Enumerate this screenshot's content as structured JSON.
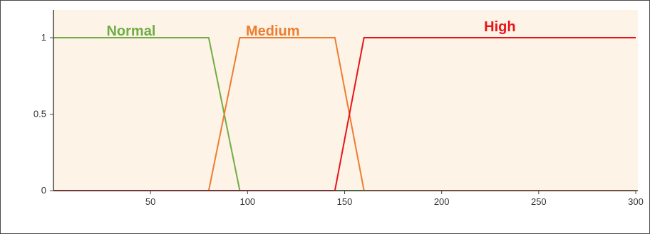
{
  "chart_data": {
    "type": "line",
    "title": "",
    "xlabel": "",
    "ylabel": "",
    "xlim": [
      0,
      300
    ],
    "ylim": [
      0,
      1
    ],
    "x_ticks": [
      {
        "value": 50,
        "label": "50"
      },
      {
        "value": 100,
        "label": "100"
      },
      {
        "value": 150,
        "label": "150"
      },
      {
        "value": 200,
        "label": "200"
      },
      {
        "value": 250,
        "label": "250"
      },
      {
        "value": 300,
        "label": "300"
      }
    ],
    "y_ticks": [
      {
        "value": 0,
        "label": "0"
      },
      {
        "value": 0.5,
        "label": "0.5"
      },
      {
        "value": 1,
        "label": "1"
      }
    ],
    "plot_background": "#fdf3e6",
    "grid": false,
    "series": [
      {
        "name": "Normal",
        "color": "#70ad47",
        "x": [
          0,
          80,
          96,
          300
        ],
        "y": [
          1,
          1,
          0,
          0
        ]
      },
      {
        "name": "Medium",
        "color": "#ed7d31",
        "x": [
          0,
          80,
          96,
          145,
          160,
          300
        ],
        "y": [
          0,
          0,
          1,
          1,
          0,
          0
        ]
      },
      {
        "name": "High",
        "color": "#e8141b",
        "x": [
          0,
          145,
          160,
          300
        ],
        "y": [
          0,
          0,
          1,
          1
        ]
      }
    ]
  }
}
